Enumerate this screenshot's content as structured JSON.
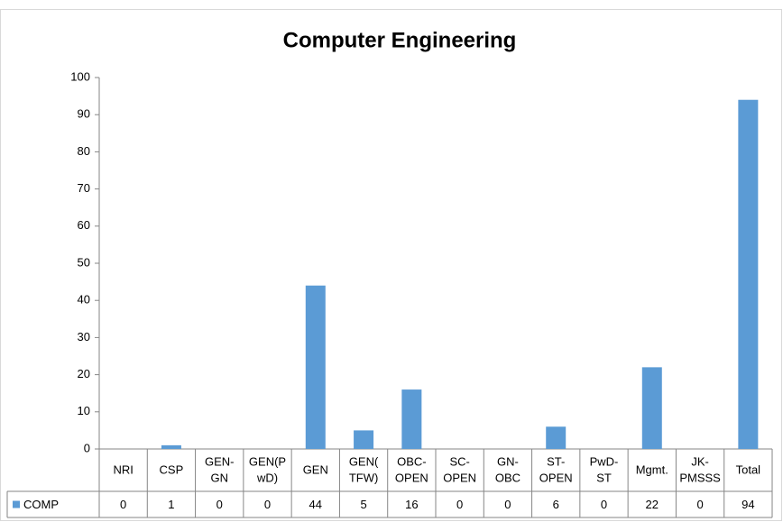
{
  "chart_data": {
    "type": "bar",
    "title": "Computer Engineering",
    "categories": [
      "NRI",
      "CSP",
      "GEN-\nGN",
      "GEN(P\nwD)",
      "GEN",
      "GEN(\nTFW)",
      "OBC-\nOPEN",
      "SC-\nOPEN",
      "GN-\nOBC",
      "ST-\nOPEN",
      "PwD-\nST",
      "Mgmt.",
      "JK-\nPMSSS",
      "Total"
    ],
    "series": [
      {
        "name": "COMP",
        "color": "#5b9bd5",
        "values": [
          0,
          1,
          0,
          0,
          44,
          5,
          16,
          0,
          0,
          6,
          0,
          22,
          0,
          94
        ]
      }
    ],
    "ylim": [
      0,
      100
    ],
    "yticks": [
      0,
      10,
      20,
      30,
      40,
      50,
      60,
      70,
      80,
      90,
      100
    ],
    "grid": false
  }
}
